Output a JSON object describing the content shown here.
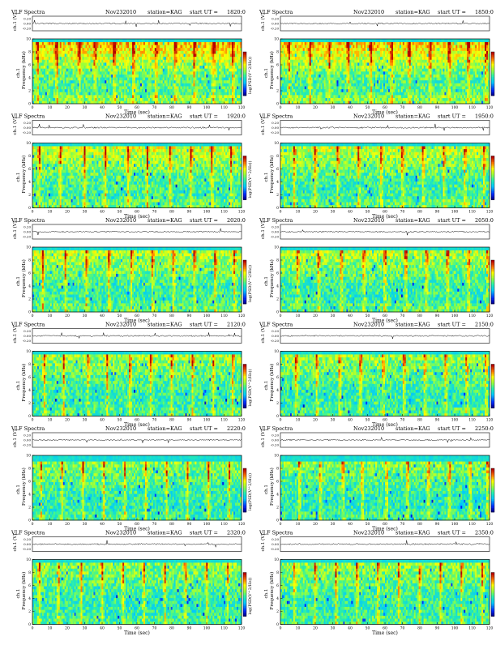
{
  "figure": {
    "header_title": "VLF Spectra",
    "date": "Nov232010",
    "station": "station=KAG",
    "start_label": "start  UT =",
    "time_label": "Time  (sec)",
    "freq_label": "Frequency (kHz)",
    "channel_label": "ch.1",
    "waveform_label": "ch.1 (V)",
    "colorbar_label": "log(PSD(V^2/Hz))"
  },
  "chart_data": [
    {
      "type": "heatmap",
      "start_ut": "1820:0",
      "xlim": [
        0,
        120
      ],
      "ylim": [
        0,
        10
      ],
      "xticks": [
        0,
        10,
        20,
        30,
        40,
        50,
        60,
        70,
        80,
        90,
        100,
        110,
        120
      ],
      "yticks": [
        0,
        2,
        4,
        6,
        8,
        10
      ],
      "waveform_ticks": [
        "0.20",
        "0.00",
        "-0.20"
      ],
      "activity": 0.95,
      "band_top_khz": 9.5,
      "burst_times_sec": [
        3,
        14,
        27,
        36,
        47,
        58,
        71,
        82,
        93,
        104,
        115
      ]
    },
    {
      "type": "heatmap",
      "start_ut": "1850:0",
      "xlim": [
        0,
        120
      ],
      "ylim": [
        0,
        10
      ],
      "xticks": [
        0,
        10,
        20,
        30,
        40,
        50,
        60,
        70,
        80,
        90,
        100,
        110,
        120
      ],
      "yticks": [
        0,
        2,
        4,
        6,
        8,
        10
      ],
      "waveform_ticks": [
        "0.20",
        "0.00",
        "-0.20"
      ],
      "activity": 0.93,
      "band_top_khz": 9.5,
      "burst_times_sec": [
        5,
        17,
        28,
        39,
        52,
        64,
        74,
        86,
        97,
        108,
        118
      ]
    },
    {
      "type": "heatmap",
      "start_ut": "1920:0",
      "xlim": [
        0,
        120
      ],
      "ylim": [
        0,
        10
      ],
      "xticks": [
        0,
        10,
        20,
        30,
        40,
        50,
        60,
        70,
        80,
        90,
        100,
        110,
        120
      ],
      "yticks": [
        0,
        2,
        4,
        6,
        8,
        10
      ],
      "waveform_ticks": [
        "0.20",
        "0.00",
        "-0.20"
      ],
      "activity": 0.7,
      "band_top_khz": 9.5,
      "burst_times_sec": [
        4,
        16,
        30,
        42,
        55,
        66,
        79,
        91,
        103,
        114
      ]
    },
    {
      "type": "heatmap",
      "start_ut": "1950:0",
      "xlim": [
        0,
        120
      ],
      "ylim": [
        0,
        10
      ],
      "xticks": [
        0,
        10,
        20,
        30,
        40,
        50,
        60,
        70,
        80,
        90,
        100,
        110,
        120
      ],
      "yticks": [
        0,
        2,
        4,
        6,
        8,
        10
      ],
      "waveform_ticks": [
        "0.20",
        "0.00",
        "-0.20"
      ],
      "activity": 0.65,
      "band_top_khz": 9.5,
      "burst_times_sec": [
        8,
        20,
        33,
        45,
        58,
        70,
        82,
        94,
        106,
        117
      ]
    },
    {
      "type": "heatmap",
      "start_ut": "2020:0",
      "xlim": [
        0,
        120
      ],
      "ylim": [
        0,
        10
      ],
      "xticks": [
        0,
        10,
        20,
        30,
        40,
        50,
        60,
        70,
        80,
        90,
        100,
        110,
        120
      ],
      "yticks": [
        0,
        2,
        4,
        6,
        8,
        10
      ],
      "waveform_ticks": [
        "0.20",
        "0.00",
        "-0.20"
      ],
      "activity": 0.62,
      "band_top_khz": 9.5,
      "burst_times_sec": [
        6,
        19,
        31,
        44,
        57,
        69,
        81,
        93,
        105,
        116
      ]
    },
    {
      "type": "heatmap",
      "start_ut": "2050:0",
      "xlim": [
        0,
        120
      ],
      "ylim": [
        0,
        10
      ],
      "xticks": [
        0,
        10,
        20,
        30,
        40,
        50,
        60,
        70,
        80,
        90,
        100,
        110,
        120
      ],
      "yticks": [
        0,
        2,
        4,
        6,
        8,
        10
      ],
      "waveform_ticks": [
        "0.20",
        "0.00",
        "-0.20"
      ],
      "activity": 0.6,
      "band_top_khz": 9.5,
      "burst_times_sec": [
        10,
        22,
        35,
        48,
        60,
        72,
        84,
        96,
        108,
        119
      ]
    },
    {
      "type": "heatmap",
      "start_ut": "2120:0",
      "xlim": [
        0,
        120
      ],
      "ylim": [
        0,
        10
      ],
      "xticks": [
        0,
        10,
        20,
        30,
        40,
        50,
        60,
        70,
        80,
        90,
        100,
        110,
        120
      ],
      "yticks": [
        0,
        2,
        4,
        6,
        8,
        10
      ],
      "waveform_ticks": [
        "0.20",
        "0.00",
        "-0.20"
      ],
      "activity": 0.55,
      "band_top_khz": 9.5,
      "burst_times_sec": [
        7,
        18,
        32,
        43,
        56,
        68,
        80,
        92,
        104,
        115
      ]
    },
    {
      "type": "heatmap",
      "start_ut": "2150:0",
      "xlim": [
        0,
        120
      ],
      "ylim": [
        0,
        10
      ],
      "xticks": [
        0,
        10,
        20,
        30,
        40,
        50,
        60,
        70,
        80,
        90,
        100,
        110,
        120
      ],
      "yticks": [
        0,
        2,
        4,
        6,
        8,
        10
      ],
      "waveform_ticks": [
        "0.20",
        "0.00",
        "-0.20"
      ],
      "activity": 0.53,
      "band_top_khz": 9.5,
      "burst_times_sec": [
        9,
        21,
        34,
        46,
        59,
        71,
        83,
        95,
        107,
        118
      ]
    },
    {
      "type": "heatmap",
      "start_ut": "2220:0",
      "xlim": [
        0,
        120
      ],
      "ylim": [
        0,
        10
      ],
      "xticks": [
        0,
        10,
        20,
        30,
        40,
        50,
        60,
        70,
        80,
        90,
        100,
        110,
        120
      ],
      "yticks": [
        0,
        2,
        4,
        6,
        8,
        10
      ],
      "waveform_ticks": [
        "0.20",
        "0.00",
        "-0.20"
      ],
      "activity": 0.45,
      "band_top_khz": 9.0,
      "burst_times_sec": [
        5,
        17,
        29,
        41,
        53,
        65,
        77,
        89,
        101,
        113
      ]
    },
    {
      "type": "heatmap",
      "start_ut": "2250:0",
      "xlim": [
        0,
        120
      ],
      "ylim": [
        0,
        10
      ],
      "xticks": [
        0,
        10,
        20,
        30,
        40,
        50,
        60,
        70,
        80,
        90,
        100,
        110,
        120
      ],
      "yticks": [
        0,
        2,
        4,
        6,
        8,
        10
      ],
      "waveform_ticks": [
        "0.20",
        "0.00",
        "-0.20"
      ],
      "activity": 0.45,
      "band_top_khz": 9.0,
      "burst_times_sec": [
        11,
        23,
        36,
        47,
        61,
        73,
        85,
        97,
        109,
        119
      ]
    },
    {
      "type": "heatmap",
      "start_ut": "2320:0",
      "xlim": [
        0,
        120
      ],
      "ylim": [
        0,
        10
      ],
      "xticks": [
        0,
        10,
        20,
        30,
        40,
        50,
        60,
        70,
        80,
        90,
        100,
        110,
        120
      ],
      "yticks": [
        0,
        2,
        4,
        6,
        8,
        10
      ],
      "waveform_ticks": [
        "0.20",
        "0.00",
        "-0.20"
      ],
      "activity": 0.48,
      "band_top_khz": 9.5,
      "burst_times_sec": [
        4,
        15,
        28,
        40,
        52,
        64,
        76,
        88,
        100,
        112
      ]
    },
    {
      "type": "heatmap",
      "start_ut": "2350:0",
      "xlim": [
        0,
        120
      ],
      "ylim": [
        0,
        10
      ],
      "xticks": [
        0,
        10,
        20,
        30,
        40,
        50,
        60,
        70,
        80,
        90,
        100,
        110,
        120
      ],
      "yticks": [
        0,
        2,
        4,
        6,
        8,
        10
      ],
      "waveform_ticks": [
        "0.20",
        "0.00",
        "-0.20"
      ],
      "activity": 0.5,
      "band_top_khz": 9.5,
      "burst_times_sec": [
        8,
        20,
        32,
        44,
        56,
        68,
        80,
        92,
        104,
        116
      ]
    }
  ]
}
